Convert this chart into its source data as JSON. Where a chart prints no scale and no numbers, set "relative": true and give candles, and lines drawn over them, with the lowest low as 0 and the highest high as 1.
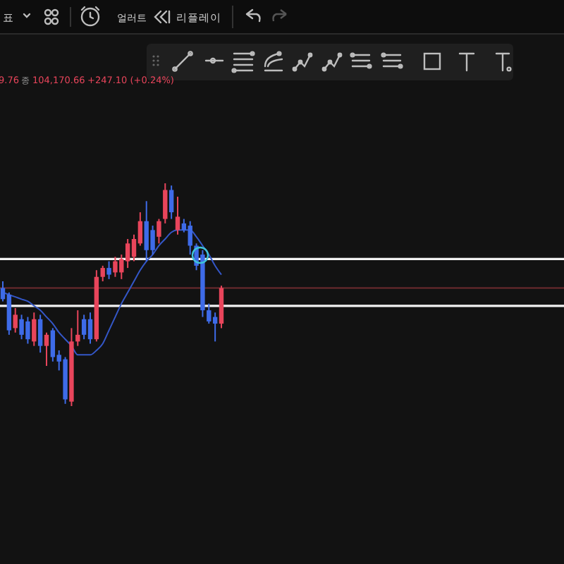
{
  "chart_data": {
    "type": "candlestick",
    "relative": true,
    "annotations": [
      "표",
      "얼러트",
      "리플레이",
      "9.76",
      "종",
      "104,170.66",
      "+247.10 (+0.24%)"
    ],
    "categories": [
      null,
      null,
      null,
      null,
      null,
      null,
      null,
      null,
      null,
      null,
      null,
      null,
      null,
      null,
      null,
      null,
      null,
      null,
      null,
      null,
      null,
      null,
      null,
      null,
      null,
      null,
      null,
      null,
      null,
      null,
      null,
      null,
      null,
      null,
      null,
      null
    ],
    "ohlc": [
      [
        0.53,
        0.56,
        0.47,
        0.48
      ],
      [
        0.5,
        0.51,
        0.32,
        0.34
      ],
      [
        0.35,
        0.44,
        0.33,
        0.41
      ],
      [
        0.39,
        0.41,
        0.3,
        0.32
      ],
      [
        0.38,
        0.4,
        0.28,
        0.3
      ],
      [
        0.29,
        0.42,
        0.27,
        0.39
      ],
      [
        0.39,
        0.41,
        0.24,
        0.27
      ],
      [
        0.27,
        0.33,
        0.18,
        0.32
      ],
      [
        0.34,
        0.35,
        0.2,
        0.22
      ],
      [
        0.23,
        0.25,
        0.16,
        0.2
      ],
      [
        0.21,
        0.22,
        0.01,
        0.03
      ],
      [
        0.02,
        0.35,
        0,
        0.29
      ],
      [
        0.29,
        0.43,
        0.27,
        0.32
      ],
      [
        0.39,
        0.41,
        0.3,
        0.32
      ],
      [
        0.39,
        0.42,
        0.28,
        0.3
      ],
      [
        0.3,
        0.61,
        0.29,
        0.58
      ],
      [
        0.58,
        0.63,
        0.56,
        0.62
      ],
      [
        0.62,
        0.65,
        0.57,
        0.59
      ],
      [
        0.6,
        0.67,
        0.58,
        0.65
      ],
      [
        0.6,
        0.68,
        0.57,
        0.66
      ],
      [
        0.65,
        0.75,
        0.62,
        0.73
      ],
      [
        0.67,
        0.77,
        0.65,
        0.75
      ],
      [
        0.73,
        0.87,
        0.72,
        0.83
      ],
      [
        0.83,
        0.92,
        0.65,
        0.7
      ],
      [
        0.79,
        0.81,
        0.68,
        0.7
      ],
      [
        0.76,
        0.84,
        0.73,
        0.83
      ],
      [
        0.84,
        1,
        0.82,
        0.97
      ],
      [
        0.97,
        0.99,
        0.84,
        0.87
      ],
      [
        0.79,
        0.94,
        0.77,
        0.85
      ],
      [
        0.82,
        0.84,
        0.78,
        0.79
      ],
      [
        0.81,
        0.83,
        0.68,
        0.72
      ],
      [
        0.72,
        0.73,
        0.61,
        0.63
      ],
      [
        0.68,
        0.7,
        0.4,
        0.43
      ],
      [
        0.43,
        0.46,
        0.37,
        0.38
      ],
      [
        0.4,
        0.42,
        0.29,
        0.37
      ],
      [
        0.37,
        0.54,
        0.35,
        0.53
      ]
    ],
    "colors": [
      "#3e6be8",
      "#3e6be8",
      "#e8455b",
      "#3e6be8",
      "#3e6be8",
      "#e8455b",
      "#3e6be8",
      "#e8455b",
      "#3e6be8",
      "#3e6be8",
      "#3e6be8",
      "#e8455b",
      "#e8455b",
      "#3e6be8",
      "#3e6be8",
      "#e8455b",
      "#e8455b",
      "#3e6be8",
      "#e8455b",
      "#e8455b",
      "#e8455b",
      "#e8455b",
      "#e8455b",
      "#3e6be8",
      "#3e6be8",
      "#e8455b",
      "#e8455b",
      "#3e6be8",
      "#e8455b",
      "#3e6be8",
      "#3e6be8",
      "#3e6be8",
      "#3e6be8",
      "#3e6be8",
      "#3e6be8",
      "#e8455b"
    ],
    "series": [
      {
        "type": "line",
        "color": "#3457c8",
        "values": [
          0.51,
          0.5,
          0.49,
          0.48,
          0.47,
          0.45,
          0.43,
          0.4,
          0.37,
          0.33,
          0.3,
          0.27,
          0.23,
          0.23,
          0.23,
          0.25,
          0.28,
          0.34,
          0.4,
          0.46,
          0.51,
          0.56,
          0.61,
          0.65,
          0.68,
          0.72,
          0.75,
          0.78,
          0.79,
          0.79,
          0.79,
          0.76,
          0.72,
          0.68,
          0.63,
          0.59
        ]
      }
    ],
    "ref_lines": [
      {
        "axis": "y",
        "value": 0.66,
        "color": "#f2f2f2"
      },
      {
        "axis": "y",
        "value": 0.45,
        "color": "#f2f2f2"
      },
      {
        "axis": "y",
        "value": 0.53,
        "color": "#6e2a2e"
      }
    ]
  }
}
